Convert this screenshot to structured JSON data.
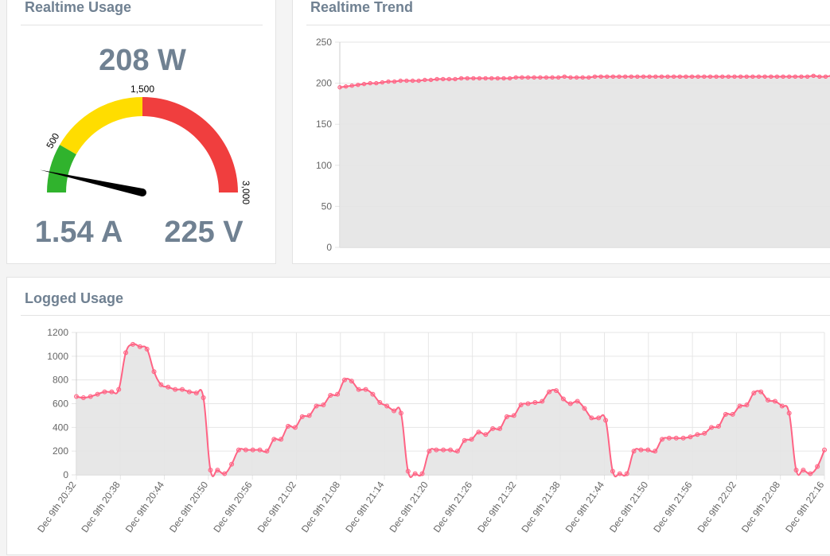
{
  "usage": {
    "title": "Realtime Usage",
    "power": "208 W",
    "current": "1.54 A",
    "voltage": "225 V",
    "gauge": {
      "value": 208,
      "min": 0,
      "max": 3000,
      "labels": [
        "500",
        "1,500",
        "3,000"
      ],
      "bands": [
        {
          "from": 0,
          "to": 500,
          "color": "#30b32d"
        },
        {
          "from": 500,
          "to": 1500,
          "color": "#ffdd00"
        },
        {
          "from": 1500,
          "to": 3000,
          "color": "#f03e3e"
        }
      ]
    }
  },
  "trend": {
    "title": "Realtime Trend",
    "chart_data": {
      "type": "area",
      "ylim": [
        0,
        250
      ],
      "yticks": [
        "250",
        "200",
        "150",
        "100",
        "50",
        "0"
      ],
      "line_color": "#ff6384",
      "fill_color": "#e4e4e4",
      "values": [
        195,
        196,
        197,
        198,
        199,
        200,
        200,
        201,
        202,
        202,
        203,
        203,
        203,
        203,
        204,
        204,
        205,
        205,
        205,
        205,
        206,
        206,
        206,
        206,
        206,
        206,
        206,
        206,
        206,
        207,
        207,
        207,
        207,
        207,
        207,
        207,
        207,
        208,
        207,
        207,
        207,
        207,
        208,
        208,
        208,
        208,
        208,
        208,
        208,
        208,
        208,
        208,
        208,
        208,
        208,
        208,
        208,
        208,
        208,
        208,
        208,
        208,
        208,
        208,
        208,
        208,
        208,
        208,
        208,
        208,
        208,
        208,
        208,
        208,
        208,
        208,
        208,
        208,
        209,
        208,
        208,
        209,
        209,
        209,
        209
      ]
    }
  },
  "logged": {
    "title": "Logged Usage",
    "chart_data": {
      "type": "area",
      "ylim": [
        0,
        1200
      ],
      "yticks": [
        "1200",
        "1000",
        "800",
        "600",
        "400",
        "200",
        "0"
      ],
      "line_color": "#ff6384",
      "fill_color": "#e4e4e4",
      "xlabels": [
        "Dec 9th 20:32",
        "Dec 9th 20:38",
        "Dec 9th 20:44",
        "Dec 9th 20:50",
        "Dec 9th 20:56",
        "Dec 9th 21:02",
        "Dec 9th 21:08",
        "Dec 9th 21:14",
        "Dec 9th 21:20",
        "Dec 9th 21:26",
        "Dec 9th 21:32",
        "Dec 9th 21:38",
        "Dec 9th 21:44",
        "Dec 9th 21:50",
        "Dec 9th 21:56",
        "Dec 9th 22:02",
        "Dec 9th 22:08",
        "Dec 9th 22:16"
      ],
      "values": [
        660,
        650,
        660,
        680,
        700,
        700,
        720,
        1030,
        1100,
        1080,
        1060,
        870,
        760,
        740,
        720,
        720,
        700,
        690,
        650,
        40,
        40,
        10,
        90,
        210,
        210,
        210,
        210,
        200,
        300,
        300,
        410,
        400,
        490,
        500,
        580,
        590,
        670,
        680,
        800,
        790,
        720,
        720,
        680,
        610,
        580,
        540,
        520,
        30,
        10,
        10,
        200,
        210,
        210,
        210,
        200,
        290,
        300,
        360,
        340,
        390,
        390,
        490,
        500,
        590,
        600,
        610,
        620,
        700,
        710,
        640,
        600,
        620,
        560,
        480,
        480,
        460,
        30,
        10,
        10,
        200,
        210,
        210,
        200,
        300,
        310,
        310,
        310,
        320,
        340,
        350,
        400,
        410,
        510,
        510,
        580,
        590,
        690,
        700,
        630,
        620,
        580,
        520,
        40,
        40,
        10,
        70,
        210
      ]
    }
  }
}
